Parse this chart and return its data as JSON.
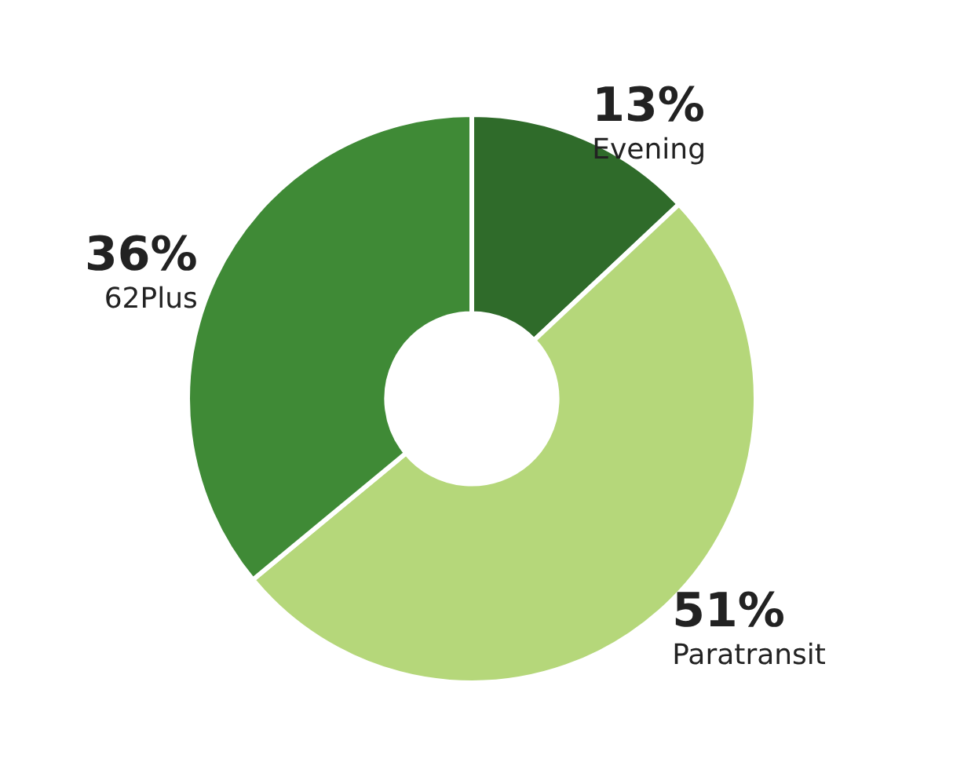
{
  "chart_data": {
    "type": "donut",
    "categories": [
      "Evening",
      "Paratransit",
      "62Plus"
    ],
    "values": [
      13,
      51,
      36
    ],
    "colors": [
      "#2f6b2a",
      "#b5d77a",
      "#3f8a36"
    ],
    "value_labels": [
      "13%",
      "51%",
      "36%"
    ],
    "legend": false
  }
}
